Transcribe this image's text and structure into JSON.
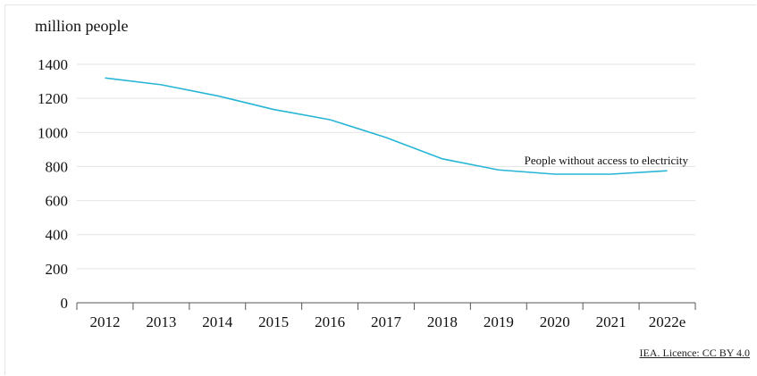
{
  "chart_data": {
    "type": "line",
    "title": "",
    "ylabel": "million people",
    "xlabel": "",
    "categories": [
      "2012",
      "2013",
      "2014",
      "2015",
      "2016",
      "2017",
      "2018",
      "2019",
      "2020",
      "2021",
      "2022e"
    ],
    "series": [
      {
        "name": "People without access to electricity",
        "values": [
          1320,
          1280,
          1215,
          1135,
          1075,
          970,
          845,
          780,
          755,
          755,
          775
        ],
        "color": "#27b5d6"
      }
    ],
    "ylim": [
      0,
      1400
    ],
    "yticks": [
      0,
      200,
      400,
      600,
      800,
      1000,
      1200,
      1400
    ],
    "grid": true
  },
  "source": "IEA. Licence: CC BY 4.0"
}
